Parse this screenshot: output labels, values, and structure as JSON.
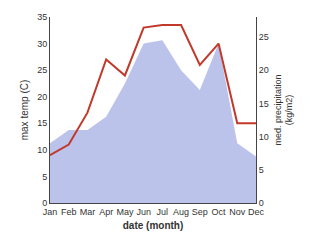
{
  "chart_data": {
    "type": "line",
    "xlabel": "date (month)",
    "ylabel": "max temp (C)",
    "y2label": "med. precipitation\n(kg/m2)",
    "categories": [
      "Jan",
      "Feb",
      "Mar",
      "Apr",
      "May",
      "Jun",
      "Jul",
      "Aug",
      "Sep",
      "Oct",
      "Nov",
      "Dec"
    ],
    "series": [
      {
        "type": "area",
        "axis": "y2",
        "color": "#b0b8e8",
        "values": [
          9,
          11,
          11,
          13,
          18,
          24,
          24.5,
          20,
          17,
          24,
          9,
          7
        ]
      },
      {
        "type": "line",
        "color": "#c0392b",
        "values": [
          9,
          11,
          17,
          27,
          24,
          33,
          33.5,
          33.5,
          26,
          30,
          15,
          15
        ]
      }
    ],
    "ylim": [
      0,
      35
    ],
    "yticks": [
      0,
      5,
      10,
      15,
      20,
      25,
      30,
      35
    ],
    "y2lim": [
      0,
      28
    ],
    "y2ticks": [
      0,
      5,
      10,
      15,
      20,
      25
    ],
    "grid": false
  }
}
